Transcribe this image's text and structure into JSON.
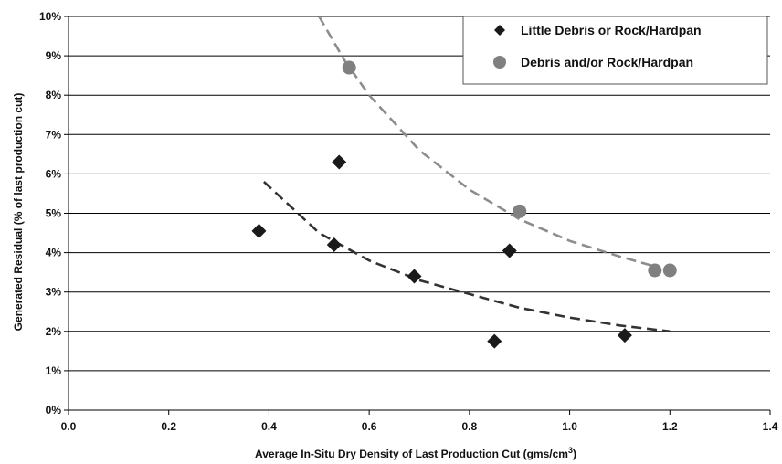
{
  "chart_data": {
    "type": "scatter",
    "title": "",
    "xlabel": "Average In-Situ Dry Density of Last Production Cut (gms/cm",
    "xlabel_superscript": "3",
    "xlabel_suffix": ")",
    "ylabel": "Generated Residual (% of last production cut)",
    "xlim": [
      0.0,
      1.4
    ],
    "ylim": [
      0,
      10
    ],
    "x_ticks": [
      0.0,
      0.2,
      0.4,
      0.6,
      0.8,
      1.0,
      1.2,
      1.4
    ],
    "x_tick_labels": [
      "0.0",
      "0.2",
      "0.4",
      "0.6",
      "0.8",
      "1.0",
      "1.2",
      "1.4"
    ],
    "y_ticks": [
      0,
      1,
      2,
      3,
      4,
      5,
      6,
      7,
      8,
      9,
      10
    ],
    "y_tick_labels": [
      "0%",
      "1%",
      "2%",
      "3%",
      "4%",
      "5%",
      "6%",
      "7%",
      "8%",
      "9%",
      "10%"
    ],
    "grid": "horizontal",
    "legend_position": "top-right",
    "series": [
      {
        "name": "Little Debris or Rock/Hardpan",
        "marker": "diamond",
        "color": "#1a1a1a",
        "points": [
          {
            "x": 0.38,
            "y": 4.55
          },
          {
            "x": 0.54,
            "y": 6.3
          },
          {
            "x": 0.53,
            "y": 4.2
          },
          {
            "x": 0.69,
            "y": 3.4
          },
          {
            "x": 0.88,
            "y": 4.05
          },
          {
            "x": 0.85,
            "y": 1.75
          },
          {
            "x": 1.11,
            "y": 1.9
          }
        ],
        "trend": {
          "color": "#333333",
          "points": [
            {
              "x": 0.39,
              "y": 5.8
            },
            {
              "x": 0.5,
              "y": 4.5
            },
            {
              "x": 0.6,
              "y": 3.8
            },
            {
              "x": 0.7,
              "y": 3.3
            },
            {
              "x": 0.8,
              "y": 2.95
            },
            {
              "x": 0.9,
              "y": 2.6
            },
            {
              "x": 1.0,
              "y": 2.35
            },
            {
              "x": 1.1,
              "y": 2.15
            },
            {
              "x": 1.2,
              "y": 2.0
            }
          ]
        }
      },
      {
        "name": "Debris and/or Rock/Hardpan",
        "marker": "circle",
        "color": "#808080",
        "points": [
          {
            "x": 0.56,
            "y": 8.7
          },
          {
            "x": 0.9,
            "y": 5.05
          },
          {
            "x": 1.17,
            "y": 3.55
          },
          {
            "x": 1.2,
            "y": 3.55
          }
        ],
        "trend": {
          "color": "#8c8c8c",
          "points": [
            {
              "x": 0.5,
              "y": 10.0
            },
            {
              "x": 0.55,
              "y": 8.9
            },
            {
              "x": 0.6,
              "y": 8.0
            },
            {
              "x": 0.7,
              "y": 6.6
            },
            {
              "x": 0.8,
              "y": 5.6
            },
            {
              "x": 0.9,
              "y": 4.85
            },
            {
              "x": 1.0,
              "y": 4.3
            },
            {
              "x": 1.1,
              "y": 3.9
            },
            {
              "x": 1.17,
              "y": 3.65
            }
          ]
        }
      }
    ]
  }
}
